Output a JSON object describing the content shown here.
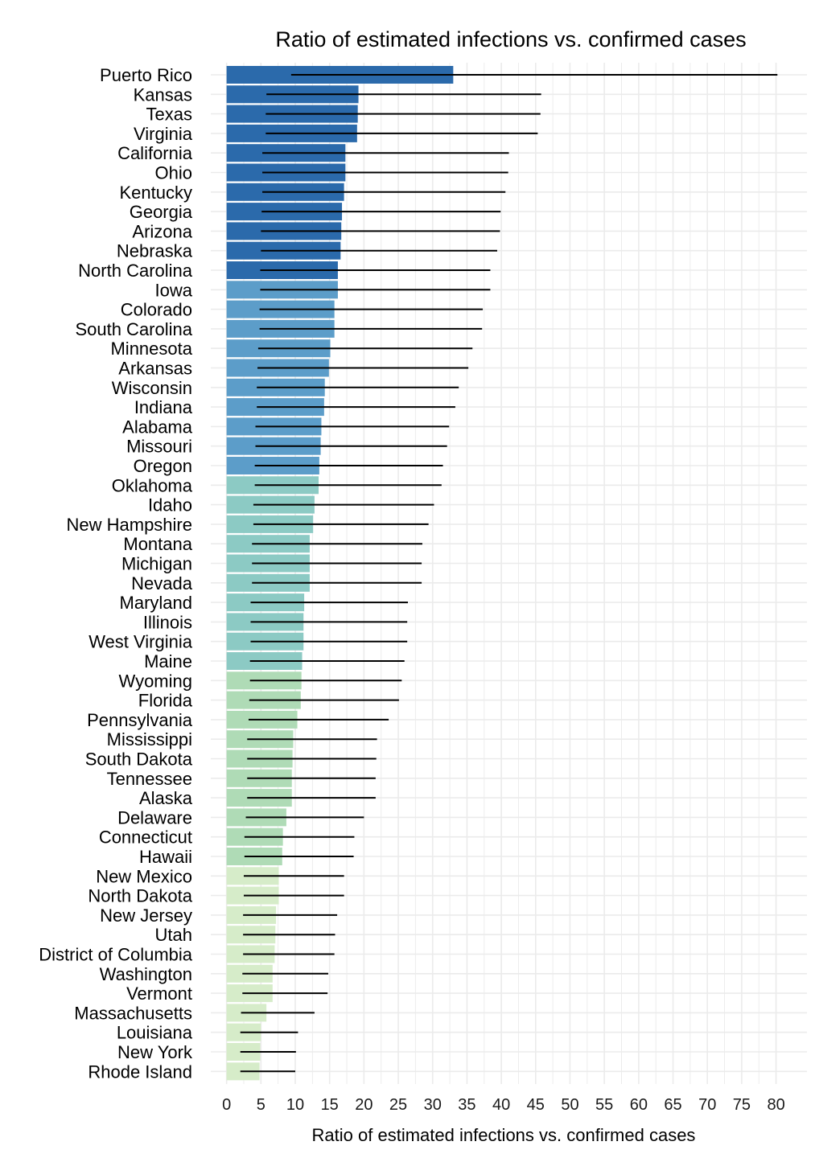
{
  "chart_data": {
    "type": "bar",
    "orientation": "horizontal",
    "title": "Ratio of estimated infections vs. confirmed cases",
    "xlabel": "Ratio of estimated infections vs. confirmed cases",
    "ylabel": "",
    "xlim": [
      -2.3,
      84.5
    ],
    "xticks": [
      0,
      5,
      10,
      15,
      20,
      25,
      30,
      35,
      40,
      45,
      50,
      55,
      60,
      65,
      70,
      75,
      80
    ],
    "grid": true,
    "legend": "none",
    "categories": [
      "Puerto Rico",
      "Kansas",
      "Texas",
      "Virginia",
      "California",
      "Ohio",
      "Kentucky",
      "Georgia",
      "Arizona",
      "Nebraska",
      "North Carolina",
      "Iowa",
      "Colorado",
      "South Carolina",
      "Minnesota",
      "Arkansas",
      "Wisconsin",
      "Indiana",
      "Alabama",
      "Missouri",
      "Oregon",
      "Oklahoma",
      "Idaho",
      "New Hampshire",
      "Montana",
      "Michigan",
      "Nevada",
      "Maryland",
      "Illinois",
      "West Virginia",
      "Maine",
      "Wyoming",
      "Florida",
      "Pennsylvania",
      "Mississippi",
      "South Dakota",
      "Tennessee",
      "Alaska",
      "Delaware",
      "Connecticut",
      "Hawaii",
      "New Mexico",
      "North Dakota",
      "New Jersey",
      "Utah",
      "District of Columbia",
      "Washington",
      "Vermont",
      "Massachusetts",
      "Louisiana",
      "New York",
      "Rhode Island"
    ],
    "values": [
      33.0,
      19.2,
      19.1,
      19.0,
      17.3,
      17.3,
      17.1,
      16.8,
      16.7,
      16.6,
      16.2,
      16.2,
      15.7,
      15.7,
      15.1,
      14.9,
      14.3,
      14.2,
      13.8,
      13.7,
      13.5,
      13.4,
      12.8,
      12.6,
      12.1,
      12.1,
      12.1,
      11.3,
      11.2,
      11.2,
      11.0,
      10.9,
      10.8,
      10.3,
      9.7,
      9.6,
      9.5,
      9.5,
      8.7,
      8.2,
      8.1,
      7.6,
      7.6,
      7.2,
      7.1,
      7.0,
      6.7,
      6.7,
      5.8,
      5.0,
      4.9,
      4.8
    ],
    "interval_low": [
      9.4,
      5.8,
      5.7,
      5.7,
      5.2,
      5.2,
      5.2,
      5.1,
      5.0,
      5.0,
      4.9,
      4.9,
      4.8,
      4.8,
      4.6,
      4.5,
      4.4,
      4.4,
      4.2,
      4.2,
      4.1,
      4.1,
      3.9,
      3.9,
      3.7,
      3.7,
      3.7,
      3.5,
      3.5,
      3.5,
      3.4,
      3.4,
      3.3,
      3.2,
      3.0,
      3.0,
      3.0,
      3.0,
      2.8,
      2.6,
      2.6,
      2.5,
      2.5,
      2.4,
      2.4,
      2.4,
      2.3,
      2.3,
      2.1,
      2.0,
      2.0,
      2.0
    ],
    "interval_high": [
      80.2,
      45.8,
      45.7,
      45.3,
      41.1,
      41.0,
      40.6,
      39.9,
      39.8,
      39.4,
      38.4,
      38.4,
      37.3,
      37.2,
      35.8,
      35.2,
      33.8,
      33.3,
      32.4,
      32.1,
      31.5,
      31.3,
      30.2,
      29.4,
      28.5,
      28.4,
      28.4,
      26.4,
      26.3,
      26.3,
      25.9,
      25.5,
      25.1,
      23.6,
      21.9,
      21.8,
      21.7,
      21.7,
      20.0,
      18.6,
      18.5,
      17.1,
      17.1,
      16.1,
      15.8,
      15.7,
      14.8,
      14.7,
      12.8,
      10.4,
      10.1,
      10.0
    ],
    "color_groups": [
      0,
      0,
      0,
      0,
      0,
      0,
      0,
      0,
      0,
      0,
      0,
      1,
      1,
      1,
      1,
      1,
      1,
      1,
      1,
      1,
      1,
      2,
      2,
      2,
      2,
      2,
      2,
      2,
      2,
      2,
      2,
      3,
      3,
      3,
      3,
      3,
      3,
      3,
      3,
      3,
      3,
      4,
      4,
      4,
      4,
      4,
      4,
      4,
      4,
      4,
      4,
      4
    ],
    "palette": [
      "#2b6aab",
      "#5c9dc9",
      "#8ccac4",
      "#afdbb6",
      "#d6ecc9"
    ],
    "error_bar_color": "#000000",
    "grid_color": "#ebebeb"
  }
}
